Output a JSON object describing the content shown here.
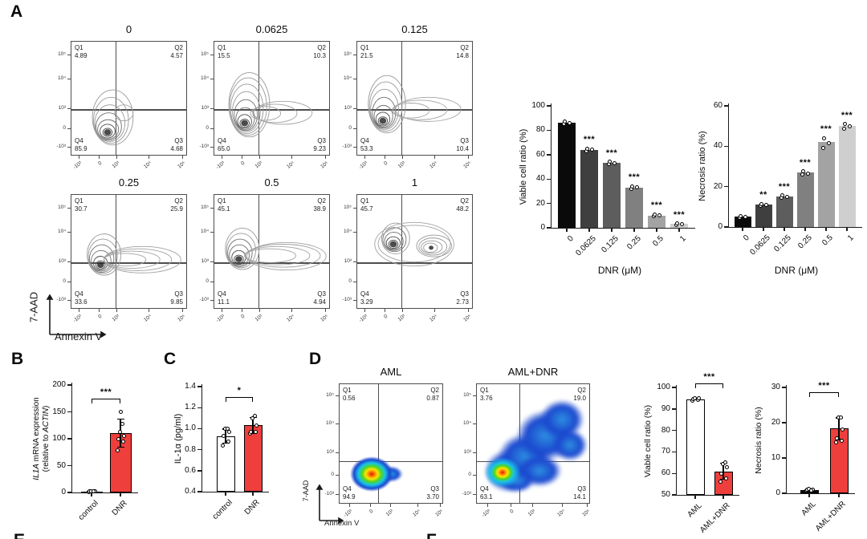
{
  "panels": {
    "A": "A",
    "B": "B",
    "C": "C",
    "D": "D",
    "E": "E",
    "F": "F"
  },
  "quadrant_labels": {
    "q1": "Q1",
    "q2": "Q2",
    "q3": "Q3",
    "q4": "Q4"
  },
  "flow_axis": {
    "ylabel": "7-AAD",
    "xlabel": "Annexin V",
    "y_ticks": [
      "10⁵",
      "10⁴",
      "10³",
      "0",
      "-10³"
    ],
    "x_ticks": [
      "-10³",
      "0",
      "10³",
      "10⁴",
      "10⁵"
    ]
  },
  "panelA_plots": [
    {
      "title": "0",
      "q1": "4.89",
      "q2": "4.57",
      "q3": "4.68",
      "q4": "85.9"
    },
    {
      "title": "0.0625",
      "q1": "15.5",
      "q2": "10.3",
      "q3": "9.23",
      "q4": "65.0"
    },
    {
      "title": "0.125",
      "q1": "21.5",
      "q2": "14.8",
      "q3": "10.4",
      "q4": "53.3"
    },
    {
      "title": "0.25",
      "q1": "30.7",
      "q2": "25.9",
      "q3": "9.85",
      "q4": "33.6"
    },
    {
      "title": "0.5",
      "q1": "45.1",
      "q2": "38.9",
      "q3": "4.94",
      "q4": "11.1"
    },
    {
      "title": "1",
      "q1": "45.7",
      "q2": "48.2",
      "q3": "2.73",
      "q4": "3.29"
    }
  ],
  "panelD_plots": [
    {
      "title": "AML",
      "q1": "0.56",
      "q2": "0.87",
      "q3": "3.70",
      "q4": "94.9"
    },
    {
      "title": "AML+DNR",
      "q1": "3.76",
      "q2": "19.0",
      "q3": "14.1",
      "q4": "63.1"
    }
  ],
  "colors": {
    "red": "#ee3f3c",
    "black": "#0a0a0a",
    "white": "#ffffff",
    "gray_ramp": [
      "#0a0a0a",
      "#3f3f3f",
      "#5d5d5d",
      "#808080",
      "#a3a3a3",
      "#cfcfcf"
    ]
  },
  "chart_data": [
    {
      "id": "viable_vs_dnr",
      "type": "bar",
      "title": "",
      "ylabel": "Viable cell ratio (%)",
      "xlabel": "DNR (μM)",
      "categories": [
        "0",
        "0.0625",
        "0.125",
        "0.25",
        "0.5",
        "1"
      ],
      "values": [
        86,
        64,
        53,
        33,
        10,
        3
      ],
      "points": [
        [
          85,
          86,
          87
        ],
        [
          63,
          64,
          65
        ],
        [
          52,
          53,
          54
        ],
        [
          32,
          33,
          34
        ],
        [
          9.5,
          10.5,
          11
        ],
        [
          2.5,
          3,
          3.5
        ]
      ],
      "significance": [
        "",
        "***",
        "***",
        "***",
        "***",
        "***"
      ],
      "ylim": [
        0,
        100
      ],
      "yticks": [
        "0",
        "20",
        "40",
        "60",
        "80",
        "100"
      ],
      "bar_colors": [
        "#0a0a0a",
        "#3f3f3f",
        "#5d5d5d",
        "#808080",
        "#a3a3a3",
        "#cfcfcf"
      ]
    },
    {
      "id": "necrosis_vs_dnr",
      "type": "bar",
      "title": "",
      "ylabel": "Necrosis ratio (%)",
      "xlabel": "DNR (μM)",
      "categories": [
        "0",
        "0.0625",
        "0.125",
        "0.25",
        "0.5",
        "1"
      ],
      "values": [
        5,
        11,
        15,
        27,
        42,
        50
      ],
      "points": [
        [
          4.5,
          5,
          5.5
        ],
        [
          10.5,
          11,
          11.5
        ],
        [
          14.5,
          15,
          15.5
        ],
        [
          26,
          26.5,
          27.5
        ],
        [
          39,
          41.5,
          44
        ],
        [
          48.5,
          50,
          51
        ]
      ],
      "significance": [
        "",
        "**",
        "***",
        "***",
        "***",
        "***"
      ],
      "ylim": [
        0,
        60
      ],
      "yticks": [
        "0",
        "20",
        "40",
        "60"
      ],
      "bar_colors": [
        "#0a0a0a",
        "#3f3f3f",
        "#5d5d5d",
        "#808080",
        "#a3a3a3",
        "#cfcfcf"
      ]
    },
    {
      "id": "il1a_mrna",
      "type": "bar",
      "title": "",
      "ylabel_lines": [
        [
          {
            "t": "IL1A",
            "i": true
          },
          {
            "t": " mRNA expression",
            "i": false
          }
        ],
        [
          {
            "t": "(relative to ",
            "i": false
          },
          {
            "t": "ACTIN",
            "i": true
          },
          {
            "t": ")",
            "i": false
          }
        ]
      ],
      "xlabel": "",
      "categories": [
        "control",
        "DNR"
      ],
      "values": [
        2,
        110
      ],
      "points": [
        [
          1,
          1.5,
          2,
          2.5,
          2,
          1.5
        ],
        [
          78,
          95,
          100,
          105,
          112,
          128,
          150
        ]
      ],
      "error_bars": [
        null,
        {
          "mean": 110,
          "sd": 27
        }
      ],
      "sig": "***",
      "ylim": [
        0,
        200
      ],
      "yticks": [
        "0",
        "50",
        "100",
        "150",
        "200"
      ],
      "bar_colors": [
        "#0a0a0a",
        "#ee3f3c"
      ]
    },
    {
      "id": "il1a_protein",
      "type": "bar",
      "title": "",
      "ylabel": "IL-1α (pg/ml)",
      "xlabel": "",
      "categories": [
        "control",
        "DNR"
      ],
      "values": [
        0.93,
        1.03
      ],
      "points": [
        [
          0.84,
          0.88,
          0.93,
          0.97,
          1.0,
          1.0
        ],
        [
          0.95,
          0.97,
          0.97,
          1.03,
          1.1,
          1.12
        ]
      ],
      "error_bars": [
        {
          "mean": 0.93,
          "sd": 0.07
        },
        {
          "mean": 1.03,
          "sd": 0.08
        }
      ],
      "sig": "*",
      "ylim": [
        0.4,
        1.4
      ],
      "yticks": [
        "0.4",
        "0.6",
        "0.8",
        "1.0",
        "1.2",
        "1.4"
      ],
      "bar_colors": [
        "#ffffff",
        "#ee3f3c"
      ]
    },
    {
      "id": "viable_aml",
      "type": "bar",
      "title": "",
      "ylabel": "Viable cell ratio (%)",
      "xlabel": "",
      "categories": [
        "AML",
        "AML+DNR"
      ],
      "values": [
        94.5,
        61
      ],
      "points": [
        [
          94,
          94.4,
          94.6,
          94.8,
          95
        ],
        [
          56,
          57.5,
          60,
          63,
          64.5,
          65
        ]
      ],
      "error_bars": [
        null,
        {
          "mean": 61,
          "sd": 4
        }
      ],
      "sig": "***",
      "ylim": [
        50,
        100
      ],
      "yticks": [
        "50",
        "60",
        "70",
        "80",
        "90",
        "100"
      ],
      "bar_colors": [
        "#ffffff",
        "#ee3f3c"
      ]
    },
    {
      "id": "necrosis_aml",
      "type": "bar",
      "title": "",
      "ylabel": "Necrosis ratio (%)",
      "xlabel": "",
      "categories": [
        "AML",
        "AML+DNR"
      ],
      "values": [
        1,
        18.3
      ],
      "points": [
        [
          0.7,
          0.9,
          1.0,
          1.1,
          1.2,
          0.9
        ],
        [
          14.5,
          15,
          15.5,
          18,
          21.5,
          21.5
        ]
      ],
      "error_bars": [
        null,
        {
          "mean": 18.3,
          "sd": 3.2
        }
      ],
      "sig": "***",
      "ylim": [
        0,
        30
      ],
      "yticks": [
        "0",
        "10",
        "20",
        "30"
      ],
      "bar_colors": [
        "#0a0a0a",
        "#ee3f3c"
      ]
    }
  ]
}
